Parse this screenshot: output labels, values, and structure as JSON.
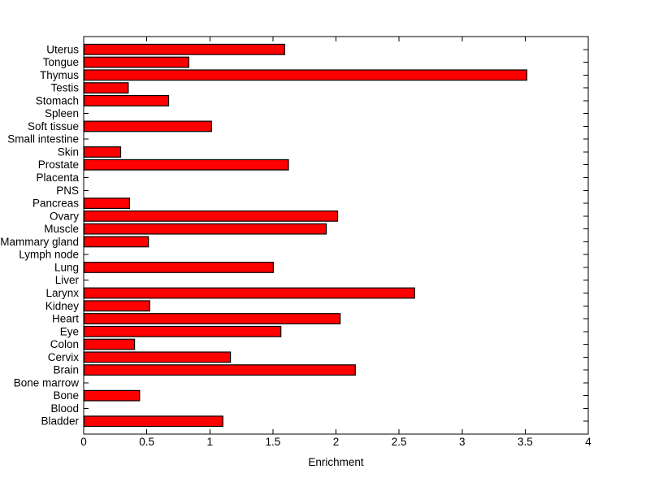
{
  "chart_data": {
    "type": "bar",
    "orientation": "horizontal",
    "title": "",
    "xlabel": "Enrichment",
    "ylabel": "",
    "xlim": [
      0,
      4
    ],
    "xtick_values": [
      0,
      0.5,
      1,
      1.5,
      2,
      2.5,
      3,
      3.5,
      4
    ],
    "xtick_labels": [
      "0",
      "0.5",
      "1",
      "1.5",
      "2",
      "2.5",
      "3",
      "3.5",
      "4"
    ],
    "grid": false,
    "legend_position": "none",
    "bar_color": "#ff0000",
    "bar_edge_color": "#000000",
    "axis_color": "#000000",
    "background": "#ffffff",
    "category_order": "top-to-bottom",
    "categories": [
      "Uterus",
      "Tongue",
      "Thymus",
      "Testis",
      "Stomach",
      "Spleen",
      "Soft tissue",
      "Small intestine",
      "Skin",
      "Prostate",
      "Placenta",
      "PNS",
      "Pancreas",
      "Ovary",
      "Muscle",
      "Mammary gland",
      "Lymph node",
      "Lung",
      "Liver",
      "Larynx",
      "Kidney",
      "Heart",
      "Eye",
      "Colon",
      "Cervix",
      "Brain",
      "Bone marrow",
      "Bone",
      "Blood",
      "Bladder"
    ],
    "values": [
      1.59,
      0.83,
      3.51,
      0.35,
      0.67,
      0,
      1.01,
      0,
      0.29,
      1.62,
      0,
      0,
      0.36,
      2.01,
      1.92,
      0.51,
      0,
      1.5,
      0,
      2.62,
      0.52,
      2.03,
      1.56,
      0.4,
      1.16,
      2.15,
      0,
      0.44,
      0,
      1.1
    ]
  }
}
